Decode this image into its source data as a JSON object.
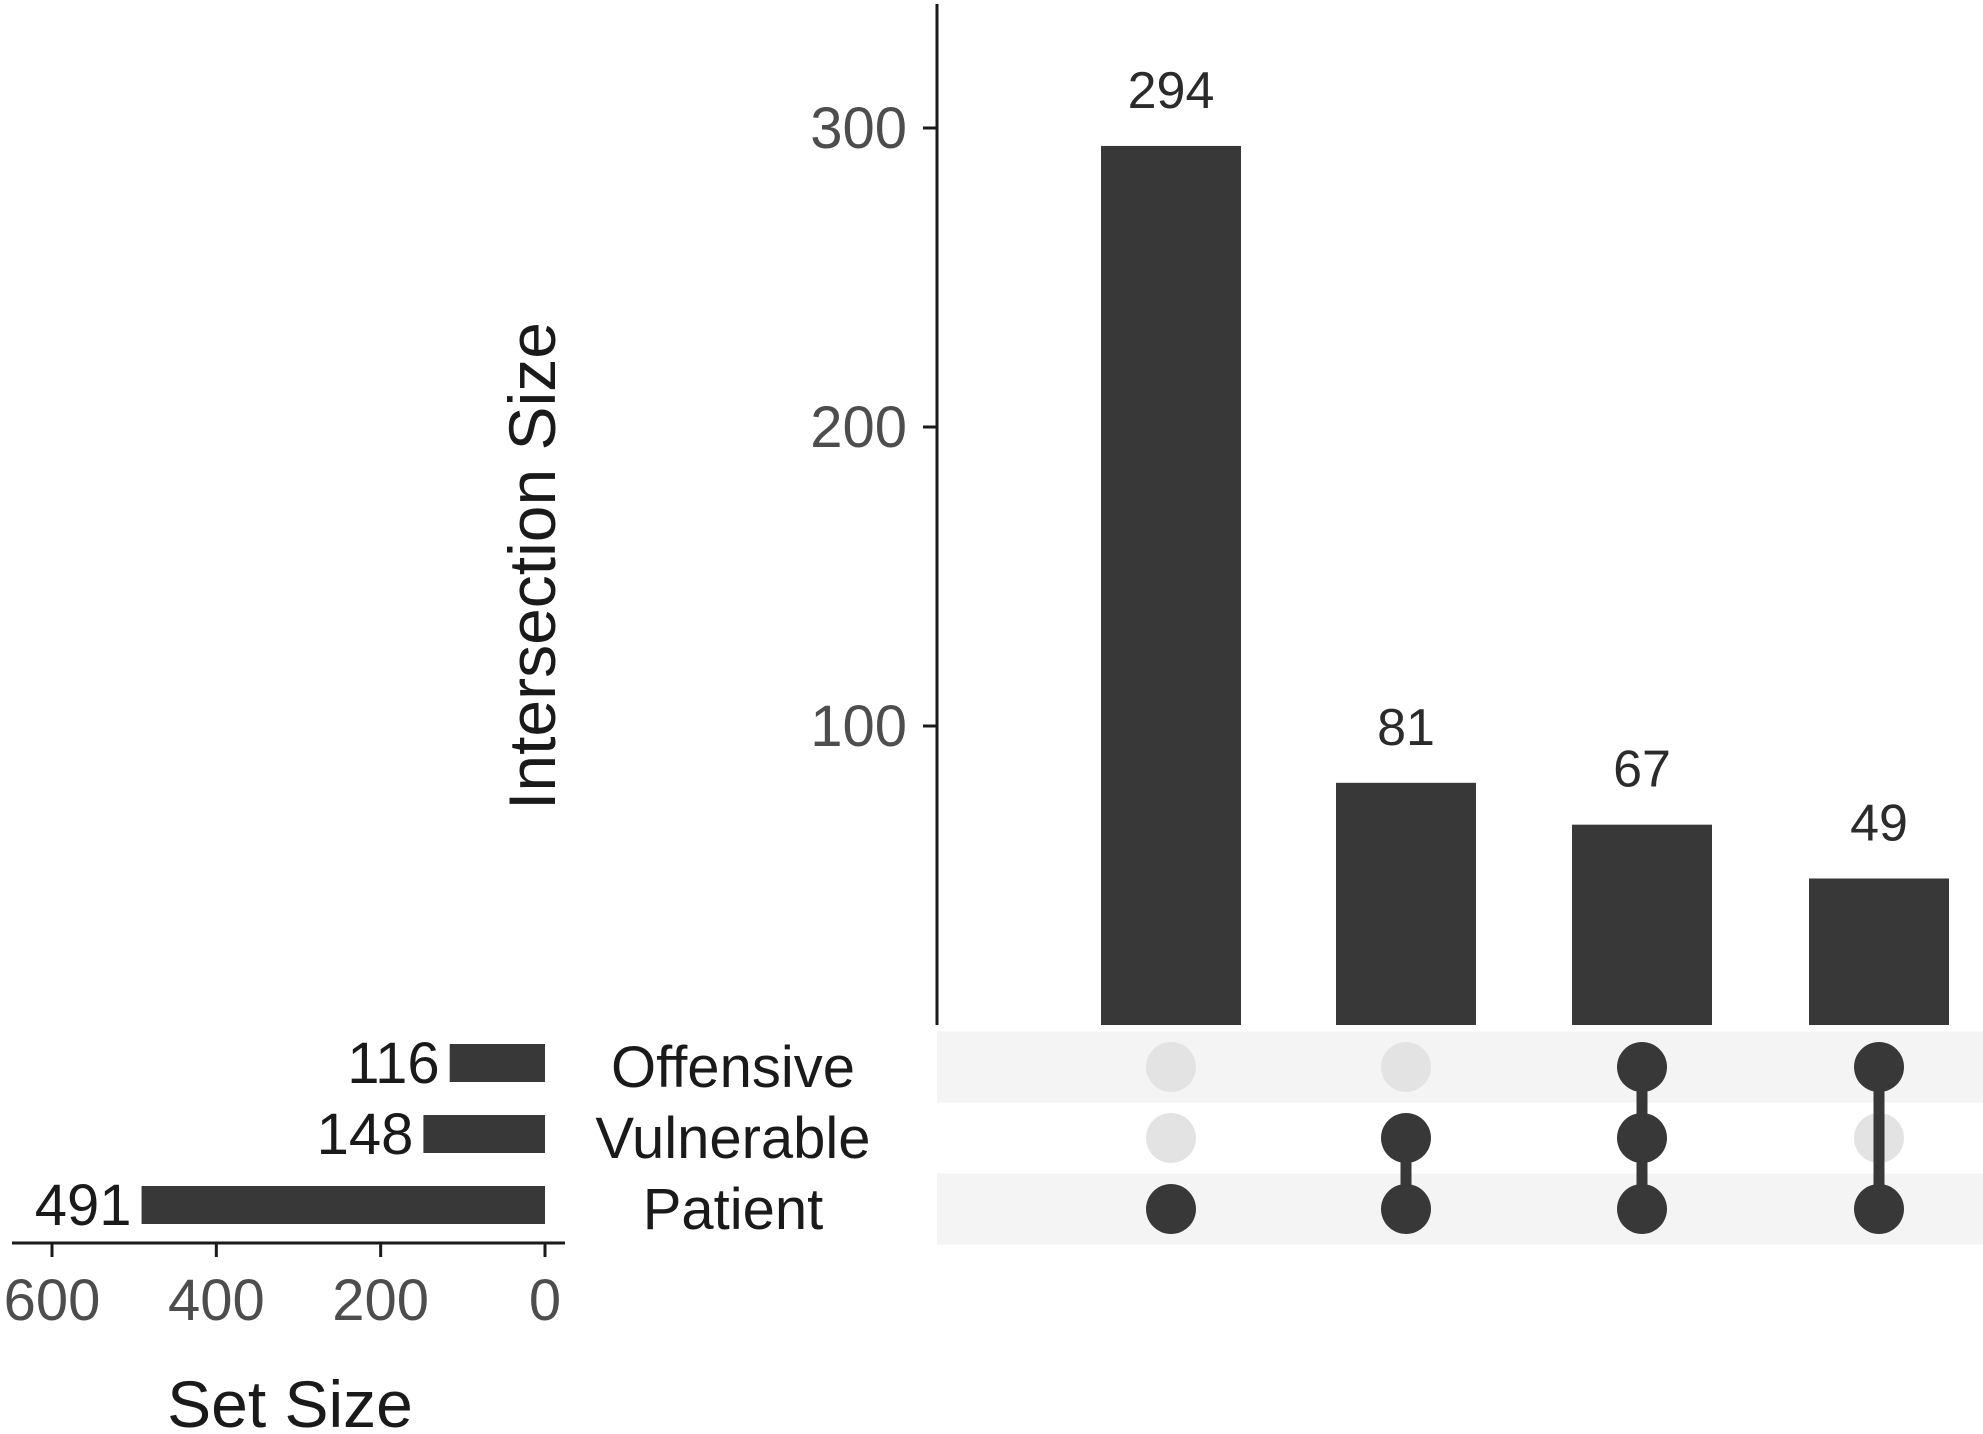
{
  "chart_data": {
    "type": "upset",
    "intersection_axis": {
      "label": "Intersection Size",
      "ylim": [
        0,
        340
      ],
      "ticks": [
        100,
        200,
        300
      ]
    },
    "set_size_axis": {
      "label": "Set Size",
      "xlim": [
        600,
        0
      ],
      "ticks": [
        600,
        400,
        200,
        0
      ]
    },
    "sets": [
      {
        "name": "Offensive",
        "size": 116
      },
      {
        "name": "Vulnerable",
        "size": 148
      },
      {
        "name": "Patient",
        "size": 491
      }
    ],
    "intersections": [
      {
        "sets": [
          "Patient"
        ],
        "size": 294
      },
      {
        "sets": [
          "Vulnerable",
          "Patient"
        ],
        "size": 81
      },
      {
        "sets": [
          "Offensive",
          "Vulnerable",
          "Patient"
        ],
        "size": 67
      },
      {
        "sets": [
          "Offensive",
          "Patient"
        ],
        "size": 49
      }
    ],
    "colors": {
      "bar": "#383838",
      "dot_active": "#383838",
      "dot_inactive": "#e3e3e3",
      "stripe": "#f4f4f4",
      "axis": "#1a1a1a",
      "tick": "#4d4d4d"
    }
  }
}
